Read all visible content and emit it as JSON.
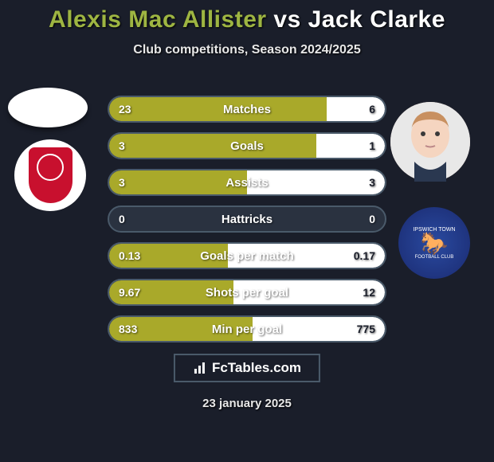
{
  "title": {
    "player1": "Alexis Mac Allister",
    "vs": "vs",
    "player2": "Jack Clarke"
  },
  "subtitle": "Club competitions, Season 2024/2025",
  "colors": {
    "player1_bar": "#a9a92a",
    "player2_bar": "#ffffff",
    "row_border": "#4a5a6a",
    "row_bg": "#2a3240",
    "background": "#1a1e2a",
    "title_p1": "#9eb542",
    "title_p2": "#ffffff"
  },
  "stats": [
    {
      "label": "Matches",
      "left_val": "23",
      "right_val": "6",
      "left_pct": 79,
      "right_pct": 21
    },
    {
      "label": "Goals",
      "left_val": "3",
      "right_val": "1",
      "left_pct": 75,
      "right_pct": 25
    },
    {
      "label": "Assists",
      "left_val": "3",
      "right_val": "3",
      "left_pct": 50,
      "right_pct": 50
    },
    {
      "label": "Hattricks",
      "left_val": "0",
      "right_val": "0",
      "left_pct": 0,
      "right_pct": 0
    },
    {
      "label": "Goals per match",
      "left_val": "0.13",
      "right_val": "0.17",
      "left_pct": 43,
      "right_pct": 57
    },
    {
      "label": "Shots per goal",
      "left_val": "9.67",
      "right_val": "12",
      "left_pct": 45,
      "right_pct": 55
    },
    {
      "label": "Min per goal",
      "left_val": "833",
      "right_val": "775",
      "left_pct": 52,
      "right_pct": 48
    }
  ],
  "clubs": {
    "left": "Liverpool",
    "right": "Ipswich Town"
  },
  "footer": {
    "brand": "FcTables.com",
    "date": "23 january 2025"
  }
}
